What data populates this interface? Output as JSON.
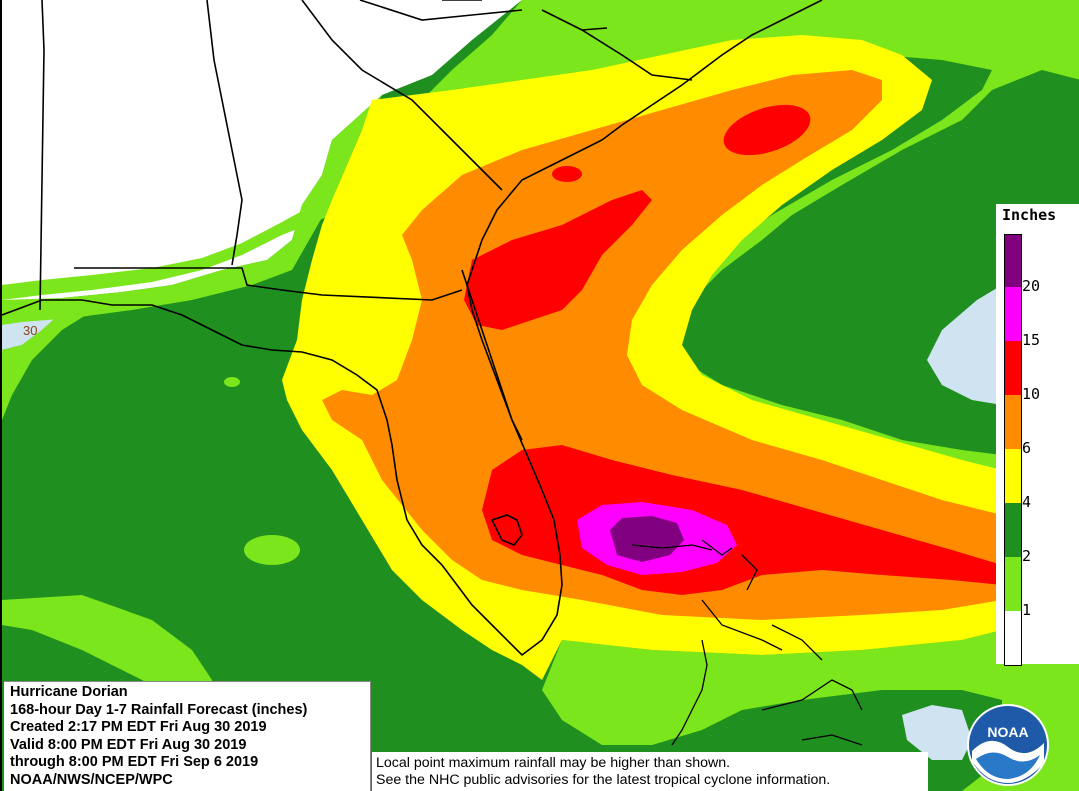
{
  "info_box": {
    "storm": "Hurricane Dorian",
    "product": "168-hour Day 1-7 Rainfall Forecast (inches)",
    "created": "Created 2:17 PM EDT Fri Aug 30 2019",
    "valid": "Valid 8:00 PM EDT Fri Aug 30 2019",
    "through": "through 8:00 PM EDT Fri Sep 6 2019",
    "agency": "NOAA/NWS/NCEP/WPC"
  },
  "disclaimer": {
    "line1": "Local point maximum rainfall may be higher than shown.",
    "line2": "See the NHC public advisories for the latest tropical cyclone information."
  },
  "legend": {
    "title": "Inches",
    "bins": [
      {
        "label": "",
        "color": "#ffffff"
      },
      {
        "label": "1",
        "color": "#7be61c"
      },
      {
        "label": "2",
        "color": "#1f8f1f"
      },
      {
        "label": "4",
        "color": "#ffff00"
      },
      {
        "label": "6",
        "color": "#ff8c00"
      },
      {
        "label": "10",
        "color": "#ff0000"
      },
      {
        "label": "15",
        "color": "#ff00ff"
      },
      {
        "label": "20",
        "color": "#800080"
      }
    ]
  },
  "map": {
    "latitude_label": "30",
    "logo_text": "NOAA",
    "colors": {
      "land_no_rain": "#ffffff",
      "water_no_rain": "#cfe3f0",
      "light_green": "#7be61c",
      "dark_green": "#1f8f1f",
      "yellow": "#ffff00",
      "orange": "#ff8c00",
      "red": "#ff0000",
      "magenta": "#ff00ff",
      "purple": "#800080",
      "boundaries": "#000000"
    }
  }
}
